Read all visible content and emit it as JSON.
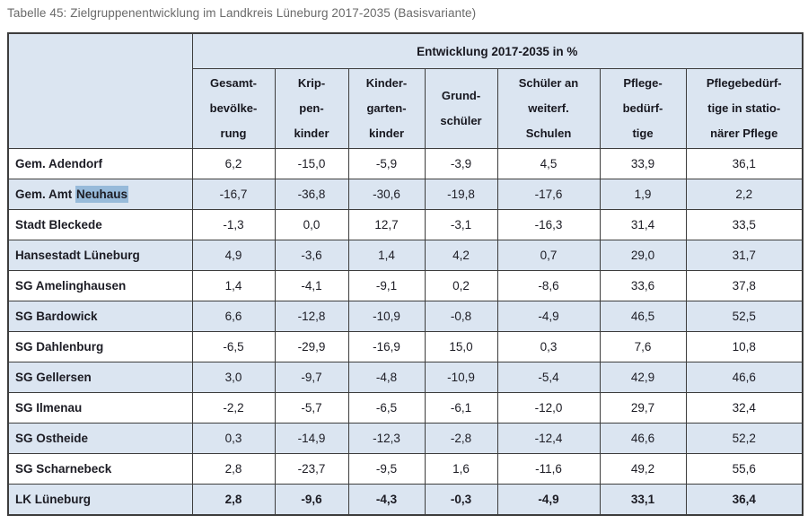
{
  "title": "Tabelle 45: Zielgruppenentwicklung im Landkreis Lüneburg 2017-2035 (Basisvariante)",
  "table": {
    "group_header": "Entwicklung 2017-2035 in %",
    "columns": [
      "Gesamt-\nbevölke-\nrung",
      "Krip-\npen-\nkinder",
      "Kinder-\ngarten-\nkinder",
      "Grund-\nschüler",
      "Schüler an\nweiterf.\nSchulen",
      "Pflege-\nbedürf-\ntige",
      "Pflegebedürf-\ntige in statio-\nnärer Pflege"
    ],
    "rows": [
      {
        "name": "Gem. Adendorf",
        "values": [
          "6,2",
          "-15,0",
          "-5,9",
          "-3,9",
          "4,5",
          "33,9",
          "36,1"
        ]
      },
      {
        "name": "Gem. Amt Neuhaus",
        "name_prefix": "Gem. Amt ",
        "name_highlight": "Neuhaus",
        "values": [
          "-16,7",
          "-36,8",
          "-30,6",
          "-19,8",
          "-17,6",
          "1,9",
          "2,2"
        ]
      },
      {
        "name": "Stadt Bleckede",
        "values": [
          "-1,3",
          "0,0",
          "12,7",
          "-3,1",
          "-16,3",
          "31,4",
          "33,5"
        ]
      },
      {
        "name": "Hansestadt Lüneburg",
        "values": [
          "4,9",
          "-3,6",
          "1,4",
          "4,2",
          "0,7",
          "29,0",
          "31,7"
        ]
      },
      {
        "name": "SG Amelinghausen",
        "values": [
          "1,4",
          "-4,1",
          "-9,1",
          "0,2",
          "-8,6",
          "33,6",
          "37,8"
        ]
      },
      {
        "name": "SG Bardowick",
        "values": [
          "6,6",
          "-12,8",
          "-10,9",
          "-0,8",
          "-4,9",
          "46,5",
          "52,5"
        ]
      },
      {
        "name": "SG Dahlenburg",
        "values": [
          "-6,5",
          "-29,9",
          "-16,9",
          "15,0",
          "0,3",
          "7,6",
          "10,8"
        ]
      },
      {
        "name": "SG Gellersen",
        "values": [
          "3,0",
          "-9,7",
          "-4,8",
          "-10,9",
          "-5,4",
          "42,9",
          "46,6"
        ]
      },
      {
        "name": "SG Ilmenau",
        "values": [
          "-2,2",
          "-5,7",
          "-6,5",
          "-6,1",
          "-12,0",
          "29,7",
          "32,4"
        ]
      },
      {
        "name": "SG Ostheide",
        "values": [
          "0,3",
          "-14,9",
          "-12,3",
          "-2,8",
          "-12,4",
          "46,6",
          "52,2"
        ]
      },
      {
        "name": "SG Scharnebeck",
        "values": [
          "2,8",
          "-23,7",
          "-9,5",
          "1,6",
          "-11,6",
          "49,2",
          "55,6"
        ]
      },
      {
        "name": "LK Lüneburg",
        "bold": true,
        "values": [
          "2,8",
          "-9,6",
          "-4,3",
          "-0,3",
          "-4,9",
          "33,1",
          "36,4"
        ]
      }
    ],
    "colors": {
      "stripe_blue": "#dbe5f1",
      "highlight_blue": "#97bada",
      "border": "#3d3d3d",
      "title_gray": "#6a6a6a"
    }
  }
}
